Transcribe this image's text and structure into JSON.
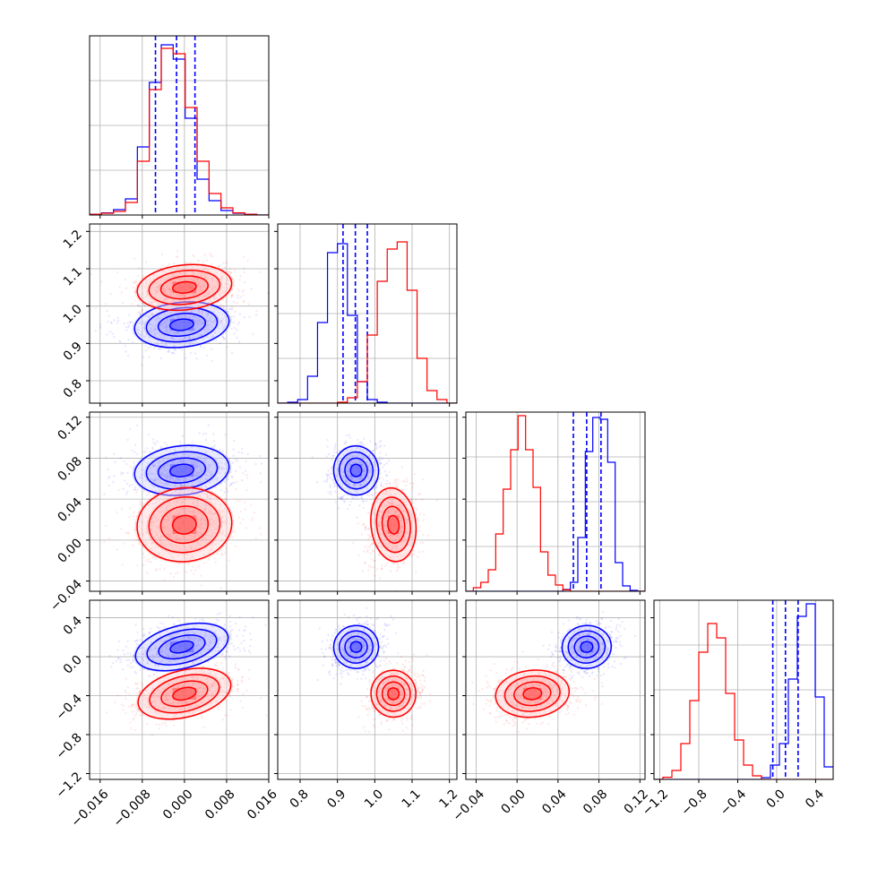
{
  "chart_data": {
    "type": "corner",
    "n_params": 4,
    "grid": true,
    "series": [
      {
        "color": "#0000ff",
        "mean": [
          -0.0005,
          0.95,
          0.068,
          0.1
        ],
        "sd": [
          0.0045,
          0.03,
          0.012,
          0.11
        ],
        "hist1d": [
          [
            0.004,
            0.012,
            0.03,
            0.09,
            0.38,
            0.74,
            0.95,
            0.87,
            0.54,
            0.2,
            0.08,
            0.025,
            0.01,
            0.004,
            0.0
          ],
          [
            0.0,
            0.005,
            0.02,
            0.15,
            0.45,
            0.84,
            0.89,
            0.49,
            0.12,
            0.02,
            0.005,
            0.0,
            0.0,
            0.0,
            0.0,
            0.0,
            0.0,
            0.0
          ],
          [
            0.0,
            0.0,
            0.0,
            0.0,
            0.0,
            0.0,
            0.0,
            0.0,
            0.0,
            0.0,
            0.0,
            0.0,
            0.0,
            0.01,
            0.05,
            0.3,
            0.78,
            0.97,
            0.96,
            0.72,
            0.16,
            0.03,
            0.005,
            0.0
          ],
          [
            0.0,
            0.0,
            0.0,
            0.0,
            0.0,
            0.0,
            0.0,
            0.0,
            0.0,
            0.0,
            0.0,
            0.0,
            0.01,
            0.08,
            0.2,
            0.56,
            0.91,
            0.98,
            0.46,
            0.07
          ]
        ],
        "quantile_lines": [
          [
            -0.0055,
            -0.0015,
            0.002
          ],
          [
            0.915,
            0.948,
            0.98
          ],
          [
            0.055,
            0.068,
            0.082
          ],
          [
            -0.04,
            0.09,
            0.22
          ]
        ]
      },
      {
        "color": "#ff0000",
        "mean": [
          0.0,
          1.05,
          0.015,
          -0.38
        ],
        "sd": [
          0.0045,
          0.03,
          0.018,
          0.12
        ],
        "hist1d": [
          [
            0.004,
            0.01,
            0.02,
            0.07,
            0.3,
            0.7,
            0.93,
            0.9,
            0.6,
            0.3,
            0.12,
            0.04,
            0.012,
            0.004,
            0.0
          ],
          [
            0.0,
            0.0,
            0.0,
            0.0,
            0.0,
            0.0,
            0.005,
            0.03,
            0.12,
            0.38,
            0.68,
            0.86,
            0.9,
            0.63,
            0.25,
            0.07,
            0.02,
            0.0
          ],
          [
            0.0,
            0.02,
            0.05,
            0.12,
            0.32,
            0.57,
            0.79,
            0.98,
            0.79,
            0.58,
            0.22,
            0.09,
            0.035,
            0.008,
            0.0,
            0.0,
            0.0,
            0.0,
            0.0,
            0.0,
            0.0,
            0.0,
            0.0,
            0.0
          ],
          [
            0.0,
            0.012,
            0.05,
            0.2,
            0.44,
            0.71,
            0.87,
            0.79,
            0.48,
            0.22,
            0.08,
            0.02,
            0.0,
            0.0,
            0.0,
            0.0,
            0.0,
            0.0,
            0.0,
            0.0
          ]
        ]
      }
    ],
    "params": [
      {
        "range": [
          -0.018,
          0.016
        ],
        "ticks": [
          -0.016,
          -0.008,
          0.0,
          0.008,
          0.016
        ],
        "tick_labels": [
          "−0.016",
          "−0.008",
          "0.000",
          "0.008",
          "0.016"
        ]
      },
      {
        "range": [
          0.74,
          1.22
        ],
        "ticks": [
          0.8,
          0.9,
          1.0,
          1.1,
          1.2
        ],
        "tick_labels": [
          "0.8",
          "0.9",
          "1.0",
          "1.1",
          "1.2"
        ]
      },
      {
        "range": [
          -0.05,
          0.125
        ],
        "ticks": [
          -0.04,
          0.0,
          0.04,
          0.08,
          0.12
        ],
        "tick_labels": [
          "−0.04",
          "0.00",
          "0.04",
          "0.08",
          "0.12"
        ]
      },
      {
        "range": [
          -1.26,
          0.58
        ],
        "ticks": [
          -1.2,
          -0.8,
          -0.4,
          0.0,
          0.4
        ],
        "tick_labels": [
          "−1.2",
          "−0.8",
          "−0.4",
          "0.0",
          "0.4"
        ]
      }
    ]
  }
}
